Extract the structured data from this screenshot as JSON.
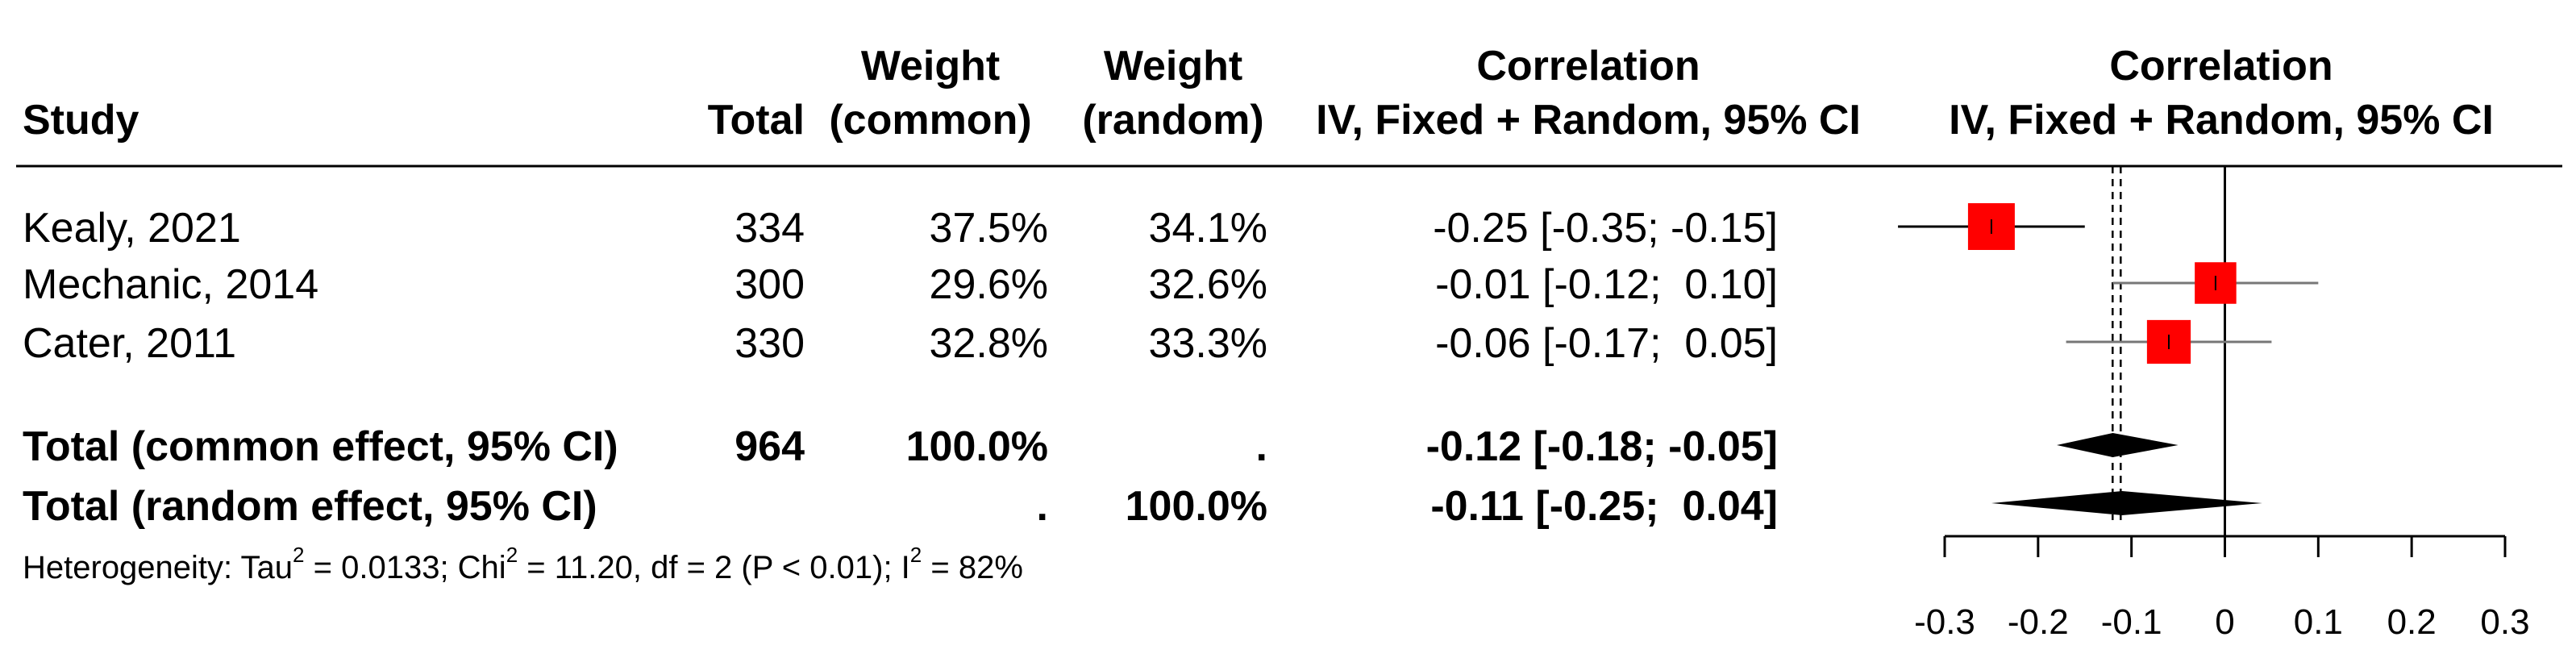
{
  "headers": {
    "study": "Study",
    "total": "Total",
    "weight_common_1": "Weight",
    "weight_common_2": "(common)",
    "weight_random_1": "Weight",
    "weight_random_2": "(random)",
    "corr_1": "Correlation",
    "corr_2": "IV, Fixed + Random, 95% CI",
    "plot_1": "Correlation",
    "plot_2": "IV, Fixed + Random, 95% CI"
  },
  "studies": [
    {
      "name": "Kealy, 2021",
      "total": "334",
      "w_common": "37.5%",
      "w_random": "34.1%",
      "ci_text": "-0.25 [-0.35; -0.15]"
    },
    {
      "name": "Mechanic, 2014",
      "total": "300",
      "w_common": "29.6%",
      "w_random": "32.6%",
      "ci_text": "-0.01 [-0.12;  0.10]"
    },
    {
      "name": "Cater, 2011",
      "total": "330",
      "w_common": "32.8%",
      "w_random": "33.3%",
      "ci_text": "-0.06 [-0.17;  0.05]"
    }
  ],
  "summary": [
    {
      "name": "Total (common effect, 95% CI)",
      "total": "964",
      "w_common": "100.0%",
      "w_random": ".",
      "ci_text": "-0.12 [-0.18; -0.05]"
    },
    {
      "name": "Total (random effect, 95% CI)",
      "total": "",
      "w_common": ".",
      "w_random": "100.0%",
      "ci_text": "-0.11 [-0.25;  0.04]"
    }
  ],
  "heterogeneity": {
    "p1": "Heterogeneity: Tau",
    "s1": "2",
    "p2": " = 0.0133; Chi",
    "s2": "2",
    "p3": " = 11.20, df = 2 (P < 0.01); I",
    "s3": "2",
    "p4": " = 82%"
  },
  "chart_data": {
    "type": "forest",
    "x_ticks": [
      "-0.3",
      "-0.2",
      "-0.1",
      "0",
      "0.1",
      "0.2",
      "0.3"
    ],
    "xlim": [
      -0.3,
      0.3
    ],
    "studies": [
      {
        "label": "Kealy, 2021",
        "estimate": -0.25,
        "lower": -0.35,
        "upper": -0.15,
        "weight_common": 37.5
      },
      {
        "label": "Mechanic, 2014",
        "estimate": -0.01,
        "lower": -0.12,
        "upper": 0.1,
        "weight_common": 29.6
      },
      {
        "label": "Cater, 2011",
        "estimate": -0.06,
        "lower": -0.17,
        "upper": 0.05,
        "weight_common": 32.8
      }
    ],
    "pooled": [
      {
        "label": "Total (common effect, 95% CI)",
        "estimate": -0.12,
        "lower": -0.18,
        "upper": -0.05
      },
      {
        "label": "Total (random effect, 95% CI)",
        "estimate": -0.11,
        "lower": -0.25,
        "upper": 0.04
      }
    ],
    "reference_line": 0,
    "pooled_reference_line": -0.115,
    "colors": {
      "square": "#ff0000",
      "diamond": "#000000",
      "line": "#000000"
    }
  }
}
